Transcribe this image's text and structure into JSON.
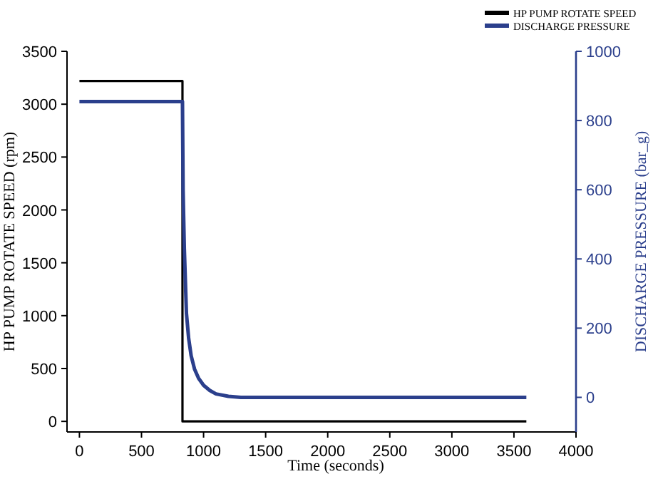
{
  "chart_data": {
    "type": "line",
    "xlabel": "Time (seconds)",
    "ylabel": "HP PUMP ROTATE SPEED (rpm)",
    "y2label": "DISCHARGE PRESSURE (bar_g)",
    "xlim": [
      -100,
      4000
    ],
    "xticks": [
      0,
      500,
      1000,
      1500,
      2000,
      2500,
      3000,
      3500,
      4000
    ],
    "ylim": [
      -100,
      3500
    ],
    "yticks": [
      0,
      500,
      1000,
      1500,
      2000,
      2500,
      3000,
      3500
    ],
    "y2lim": [
      -100,
      1000
    ],
    "y2ticks": [
      0,
      200,
      400,
      600,
      800,
      1000
    ],
    "legend": "top right",
    "grid": false,
    "line_style": "solid",
    "marker": "none",
    "series": [
      {
        "name": "HP PUMP ROTATE SPEED",
        "color": "#000000",
        "x": [
          0,
          830,
          830,
          3600
        ],
        "values": [
          3220,
          3220,
          0,
          0
        ]
      },
      {
        "name": "DISCHARGE PRESSURE",
        "color": "#2b3f8c",
        "axis": "y2",
        "x": [
          0,
          820,
          830,
          835,
          845,
          862,
          880,
          900,
          927,
          960,
          1000,
          1050,
          1100,
          1200,
          1300,
          3600
        ],
        "values": [
          855,
          855,
          855,
          600,
          430,
          243,
          170,
          120,
          82,
          55,
          35,
          20,
          10,
          3,
          0,
          0
        ]
      }
    ]
  }
}
